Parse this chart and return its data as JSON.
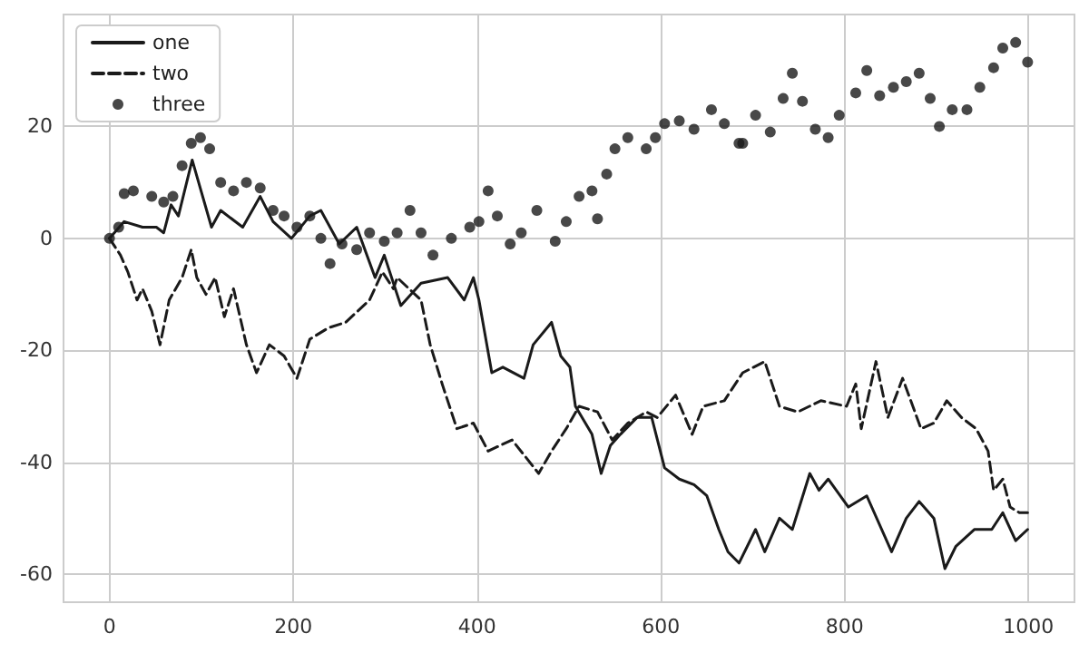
{
  "chart_data": {
    "type": "line",
    "xlim": [
      -50,
      1050
    ],
    "xticks": [
      0,
      200,
      400,
      600,
      800,
      1000
    ],
    "ylim": [
      -65,
      40
    ],
    "yticks": [
      -60,
      -40,
      -20,
      0,
      20
    ],
    "grid": true,
    "legend": "top left",
    "series": [
      {
        "name": "one",
        "color": "#1a1a1a",
        "line_style": "solid",
        "marker": "none",
        "x": [
          0,
          16,
          36,
          51,
          59,
          67,
          75,
          90,
          111,
          121,
          145,
          164,
          178,
          198,
          218,
          230,
          250,
          269,
          289,
          299,
          317,
          339,
          368,
          386,
          396,
          402,
          416,
          428,
          451,
          461,
          481,
          491,
          501,
          507,
          525,
          535,
          545,
          556,
          574,
          590,
          604,
          620,
          636,
          650,
          663,
          673,
          685,
          703,
          713,
          729,
          743,
          762,
          772,
          782,
          804,
          824,
          851,
          867,
          881,
          897,
          909,
          921,
          941,
          960,
          972,
          986,
          999
        ],
        "values": [
          0,
          3,
          2,
          2,
          1,
          6,
          4,
          14,
          2,
          5,
          2,
          7.5,
          3,
          0,
          4,
          5,
          -1,
          2,
          -7,
          -3,
          -12,
          -8,
          -7,
          -11,
          -7,
          -11,
          -24,
          -23,
          -25,
          -19,
          -15,
          -21,
          -23,
          -30,
          -35,
          -42,
          -37,
          -35,
          -32,
          -32,
          -41,
          -43,
          -44,
          -46,
          -52,
          -56,
          -58,
          -52,
          -56,
          -50,
          -52,
          -42,
          -45,
          -43,
          -48,
          -46,
          -56,
          -50,
          -47,
          -50,
          -59,
          -55,
          -52,
          -52,
          -49,
          -54,
          -52
        ]
      },
      {
        "name": "two",
        "color": "#1a1a1a",
        "line_style": "dashed",
        "marker": "none",
        "x": [
          0,
          12,
          20,
          30,
          36,
          46,
          55,
          65,
          79,
          89,
          95,
          105,
          115,
          125,
          135,
          149,
          160,
          174,
          190,
          204,
          218,
          238,
          257,
          283,
          297,
          309,
          313,
          339,
          349,
          362,
          378,
          396,
          412,
          438,
          467,
          481,
          497,
          511,
          531,
          547,
          564,
          584,
          596,
          616,
          634,
          646,
          669,
          689,
          713,
          729,
          749,
          774,
          802,
          812,
          818,
          834,
          847,
          863,
          883,
          897,
          911,
          927,
          943,
          956,
          962,
          972,
          980,
          990,
          999
        ],
        "values": [
          0,
          -3,
          -6,
          -11,
          -9,
          -13,
          -19,
          -11,
          -7,
          -2,
          -7,
          -10,
          -7,
          -14,
          -9,
          -19,
          -24,
          -19,
          -21,
          -25,
          -18,
          -16,
          -15,
          -11,
          -6,
          -9,
          -7,
          -11,
          -19,
          -26,
          -34,
          -33,
          -38,
          -36,
          -42,
          -38,
          -34,
          -30,
          -31,
          -36,
          -33,
          -31,
          -32,
          -28,
          -35,
          -30,
          -29,
          -24,
          -22,
          -30,
          -31,
          -29,
          -30,
          -26,
          -34,
          -22,
          -32,
          -25,
          -34,
          -33,
          -29,
          -32,
          -34,
          -38,
          -45,
          -43,
          -48,
          -49,
          -49
        ]
      },
      {
        "name": "three",
        "type": "scatter",
        "color": "#1a1a1a",
        "marker": "circle",
        "x": [
          0,
          10,
          16,
          26,
          46,
          59,
          69,
          79,
          89,
          99,
          109,
          121,
          135,
          149,
          164,
          178,
          190,
          204,
          218,
          230,
          240,
          253,
          269,
          283,
          299,
          313,
          327,
          339,
          352,
          372,
          392,
          402,
          412,
          422,
          436,
          448,
          465,
          485,
          497,
          511,
          525,
          531,
          541,
          550,
          564,
          584,
          594,
          604,
          620,
          636,
          655,
          669,
          685,
          689,
          703,
          719,
          733,
          743,
          754,
          768,
          782,
          794,
          812,
          824,
          838,
          853,
          867,
          881,
          893,
          903,
          917,
          933,
          947,
          962,
          972,
          986,
          999
        ],
        "values": [
          0,
          2,
          8,
          8.5,
          7.5,
          6.5,
          7.5,
          13,
          17,
          18,
          16,
          10,
          8.5,
          10,
          9,
          5,
          4,
          2,
          4,
          0,
          -4.5,
          -1,
          -2,
          1,
          -0.5,
          1,
          5,
          1,
          -3,
          0,
          2,
          3,
          8.5,
          4,
          -1,
          1,
          5,
          -0.5,
          3,
          7.5,
          8.5,
          3.5,
          11.5,
          16,
          18,
          16,
          18,
          20.5,
          21,
          19.5,
          23,
          20.5,
          17,
          17,
          22,
          19,
          25,
          29.5,
          24.5,
          19.5,
          18,
          22,
          26,
          30,
          25.5,
          27,
          28,
          29.5,
          25,
          20,
          23,
          23,
          27,
          30.5,
          34,
          35,
          31.5
        ]
      }
    ]
  }
}
